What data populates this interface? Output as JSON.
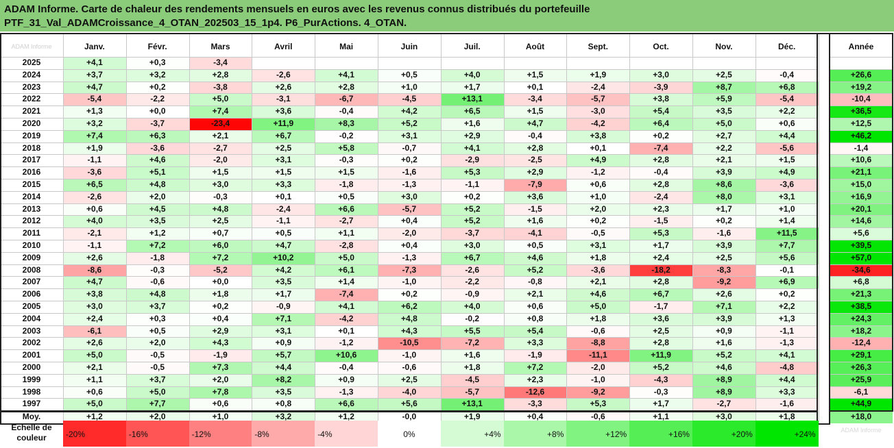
{
  "title_line1": "ADAM Informe. Carte de chaleur des rendements mensuels en euros avec les revenus connus distribués du portefeuille",
  "title_line2": "PTF_31_Val_ADAMCroissance_4_OTAN_202503_15_1p4. P6_PurActions. 4_OTAN.",
  "corner_label": "ADAM Informe",
  "scale_label": "Echelle de couleur",
  "scale_note": "ADAM Informe",
  "colors": {
    "title_bg": "#8bcc7a",
    "neg_max": "#ff0000",
    "pos_max": "#00e000",
    "neutral": "#ffffff"
  },
  "chart_data": {
    "type": "heatmap",
    "months": [
      "Janv.",
      "Févr.",
      "Mars",
      "Avril",
      "Mai",
      "Juin",
      "Juil.",
      "Août",
      "Sept.",
      "Oct.",
      "Nov.",
      "Déc."
    ],
    "annual_label": "Année",
    "avg_label": "Moy.",
    "rows": [
      {
        "year": "2025",
        "m": [
          "+4,1",
          "+0,3",
          "-3,4",
          "",
          "",
          "",
          "",
          "",
          "",
          "",
          "",
          ""
        ],
        "a": ""
      },
      {
        "year": "2024",
        "m": [
          "+3,7",
          "+3,2",
          "+2,8",
          "-2,6",
          "+4,1",
          "+0,5",
          "+4,0",
          "+1,5",
          "+1,9",
          "+3,0",
          "+2,5",
          "-0,4"
        ],
        "a": "+26,6"
      },
      {
        "year": "2023",
        "m": [
          "+4,7",
          "+0,2",
          "-3,8",
          "+2,6",
          "+2,8",
          "+1,0",
          "+1,7",
          "+0,1",
          "-2,4",
          "-3,9",
          "+8,7",
          "+6,8"
        ],
        "a": "+19,2"
      },
      {
        "year": "2022",
        "m": [
          "-5,4",
          "-2,2",
          "+5,0",
          "-3,1",
          "-6,7",
          "-4,5",
          "+13,1",
          "-3,4",
          "-5,7",
          "+3,8",
          "+5,9",
          "-5,4"
        ],
        "a": "-10,4"
      },
      {
        "year": "2021",
        "m": [
          "+1,3",
          "+0,0",
          "+7,4",
          "+3,6",
          "-0,4",
          "+4,2",
          "+6,5",
          "+1,5",
          "-3,0",
          "+5,4",
          "+3,5",
          "+2,2"
        ],
        "a": "+36,5"
      },
      {
        "year": "2020",
        "m": [
          "+3,2",
          "-3,7",
          "-23,4",
          "+11,9",
          "+8,3",
          "+5,2",
          "+1,6",
          "+4,7",
          "-4,2",
          "+6,4",
          "+5,0",
          "+0,6"
        ],
        "a": "+12,5"
      },
      {
        "year": "2019",
        "m": [
          "+7,4",
          "+6,3",
          "+2,1",
          "+6,7",
          "-0,2",
          "+3,1",
          "+2,9",
          "-0,4",
          "+3,8",
          "+0,2",
          "+2,7",
          "+4,4"
        ],
        "a": "+46,2"
      },
      {
        "year": "2018",
        "m": [
          "+1,9",
          "-3,6",
          "-2,7",
          "+2,5",
          "+5,8",
          "-0,7",
          "+4,1",
          "+2,8",
          "+0,1",
          "-7,4",
          "+2,2",
          "-5,6"
        ],
        "a": "-1,4"
      },
      {
        "year": "2017",
        "m": [
          "-1,1",
          "+4,6",
          "-2,0",
          "+3,1",
          "-0,3",
          "+0,2",
          "-2,9",
          "-2,5",
          "+4,9",
          "+2,8",
          "+2,1",
          "+1,5"
        ],
        "a": "+10,6"
      },
      {
        "year": "2016",
        "m": [
          "-3,6",
          "+5,1",
          "+1,5",
          "+1,5",
          "+1,5",
          "-1,6",
          "+5,3",
          "+2,9",
          "-1,2",
          "-0,4",
          "+3,9",
          "+4,9"
        ],
        "a": "+21,1"
      },
      {
        "year": "2015",
        "m": [
          "+6,5",
          "+4,8",
          "+3,0",
          "+3,3",
          "-1,8",
          "-1,3",
          "-1,1",
          "-7,9",
          "+0,6",
          "+2,8",
          "+8,6",
          "-3,6"
        ],
        "a": "+15,0"
      },
      {
        "year": "2014",
        "m": [
          "-2,6",
          "+2,0",
          "-0,3",
          "+0,1",
          "+0,5",
          "+3,0",
          "+0,2",
          "+3,6",
          "+1,0",
          "-2,4",
          "+8,0",
          "+3,1"
        ],
        "a": "+16,9"
      },
      {
        "year": "2013",
        "m": [
          "+0,6",
          "+4,5",
          "+4,8",
          "-2,4",
          "+6,6",
          "-5,7",
          "+5,2",
          "-1,5",
          "+2,0",
          "+2,3",
          "+1,7",
          "+1,0"
        ],
        "a": "+20,1"
      },
      {
        "year": "2012",
        "m": [
          "+4,0",
          "+3,5",
          "+2,5",
          "-1,1",
          "-2,7",
          "+0,4",
          "+5,2",
          "+1,6",
          "+0,2",
          "-1,5",
          "+0,2",
          "+1,4"
        ],
        "a": "+14,6"
      },
      {
        "year": "2011",
        "m": [
          "-2,1",
          "+1,2",
          "+0,7",
          "+0,5",
          "+1,1",
          "-2,0",
          "-3,7",
          "-4,1",
          "-0,5",
          "+5,3",
          "-1,6",
          "+11,5"
        ],
        "a": "+5,6"
      },
      {
        "year": "2010",
        "m": [
          "-1,1",
          "+7,2",
          "+6,0",
          "+4,7",
          "-2,8",
          "+0,4",
          "+3,0",
          "+0,5",
          "+3,1",
          "+1,7",
          "+3,9",
          "+7,7"
        ],
        "a": "+39,5"
      },
      {
        "year": "2009",
        "m": [
          "+2,6",
          "-1,8",
          "+7,2",
          "+10,2",
          "+5,0",
          "-1,3",
          "+6,7",
          "+4,6",
          "+1,8",
          "+2,4",
          "+2,5",
          "+5,6"
        ],
        "a": "+57,0"
      },
      {
        "year": "2008",
        "m": [
          "-8,6",
          "-0,3",
          "-5,2",
          "+4,2",
          "+6,1",
          "-7,3",
          "-2,6",
          "+5,2",
          "-3,6",
          "-18,2",
          "-8,3",
          "-0,1"
        ],
        "a": "-34,6"
      },
      {
        "year": "2007",
        "m": [
          "+4,7",
          "-0,6",
          "+0,0",
          "+3,5",
          "+1,4",
          "-1,0",
          "-2,2",
          "-0,8",
          "+2,1",
          "+2,8",
          "-9,2",
          "+6,9"
        ],
        "a": "+6,8"
      },
      {
        "year": "2006",
        "m": [
          "+3,8",
          "+4,8",
          "+1,8",
          "+1,7",
          "-7,4",
          "+0,2",
          "-0,9",
          "+2,1",
          "+4,6",
          "+6,7",
          "+2,6",
          "+0,2"
        ],
        "a": "+21,3"
      },
      {
        "year": "2005",
        "m": [
          "+3,0",
          "+3,7",
          "+0,2",
          "-0,9",
          "+4,1",
          "+6,2",
          "+4,0",
          "+0,6",
          "+5,0",
          "-1,7",
          "+7,1",
          "+2,2"
        ],
        "a": "+38,5"
      },
      {
        "year": "2004",
        "m": [
          "+2,4",
          "+0,3",
          "+0,4",
          "+7,1",
          "-4,2",
          "+4,8",
          "-0,2",
          "+0,8",
          "+1,8",
          "+3,6",
          "+3,9",
          "+1,3"
        ],
        "a": "+24,3"
      },
      {
        "year": "2003",
        "m": [
          "-6,1",
          "+0,5",
          "+2,9",
          "+3,1",
          "+0,1",
          "+4,3",
          "+5,5",
          "+5,4",
          "-0,6",
          "+2,5",
          "+0,9",
          "-1,1"
        ],
        "a": "+18,2"
      },
      {
        "year": "2002",
        "m": [
          "+2,6",
          "+2,0",
          "+4,3",
          "+0,9",
          "-1,2",
          "-10,5",
          "-7,2",
          "+3,3",
          "-8,8",
          "+2,8",
          "+1,6",
          "-1,3"
        ],
        "a": "-12,4"
      },
      {
        "year": "2001",
        "m": [
          "+5,0",
          "-0,5",
          "-1,9",
          "+5,7",
          "+10,6",
          "-1,0",
          "+1,6",
          "-1,9",
          "-11,1",
          "+11,9",
          "+5,2",
          "+4,1"
        ],
        "a": "+29,1"
      },
      {
        "year": "2000",
        "m": [
          "+2,1",
          "-0,5",
          "+7,3",
          "+4,4",
          "-0,4",
          "-0,6",
          "+1,8",
          "+7,2",
          "-2,0",
          "+5,2",
          "+4,6",
          "-4,8"
        ],
        "a": "+26,3"
      },
      {
        "year": "1999",
        "m": [
          "+1,1",
          "+3,7",
          "+2,0",
          "+8,2",
          "+0,9",
          "+2,5",
          "-4,5",
          "+2,3",
          "-1,0",
          "-4,3",
          "+8,9",
          "+4,4"
        ],
        "a": "+25,9"
      },
      {
        "year": "1998",
        "m": [
          "+0,6",
          "+5,0",
          "+7,8",
          "+3,5",
          "-1,3",
          "-4,0",
          "-5,7",
          "-12,6",
          "-9,2",
          "-0,3",
          "+8,9",
          "+3,3"
        ],
        "a": "-6,1"
      },
      {
        "year": "1997",
        "m": [
          "+5,0",
          "+7,7",
          "+0,6",
          "+0,8",
          "+6,6",
          "+5,6",
          "+13,1",
          "-3,3",
          "+5,3",
          "+1,7",
          "-2,7",
          "-1,6"
        ],
        "a": "+44,9"
      }
    ],
    "average": {
      "m": [
        "+1,2",
        "+2,0",
        "+1,0",
        "+3,2",
        "+1,2",
        "-0,0",
        "+1,9",
        "+0,4",
        "-0,6",
        "+1,1",
        "+3,0",
        "+1,8"
      ],
      "a": "+18,0"
    },
    "scale": [
      "-20%",
      "-16%",
      "-12%",
      "-8%",
      "-4%",
      "0%",
      "+4%",
      "+8%",
      "+12%",
      "+16%",
      "+20%",
      "+24%"
    ]
  }
}
